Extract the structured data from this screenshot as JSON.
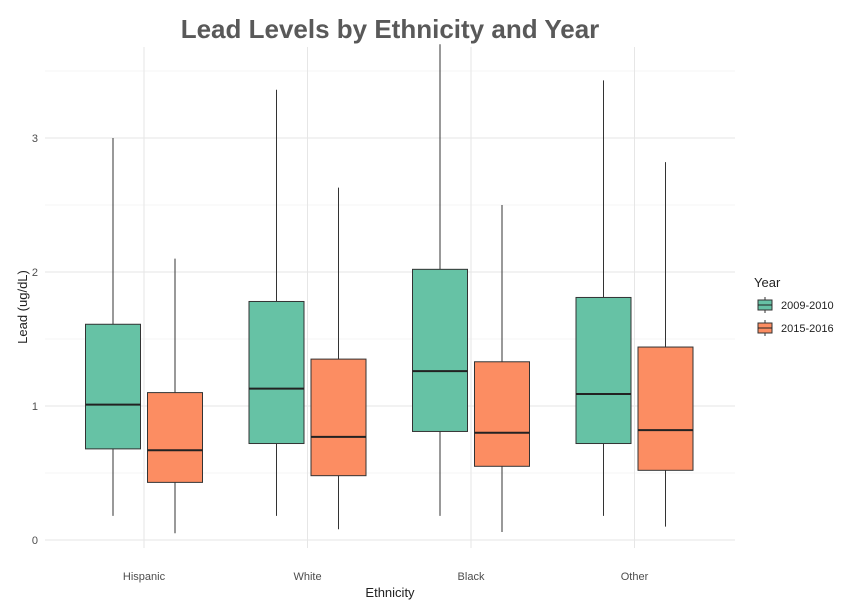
{
  "chart_data": {
    "type": "box",
    "title": "Lead Levels by Ethnicity and Year",
    "xlabel": "Ethnicity",
    "ylabel": "Lead (ug/dL)",
    "ylim": [
      0,
      3.7
    ],
    "yticks": [
      0,
      1,
      2,
      3
    ],
    "grid": true,
    "legend_position": "right",
    "legend_title": "Year",
    "categories": [
      "Hispanic",
      "White",
      "Black",
      "Other"
    ],
    "series": [
      {
        "name": "2009-2010",
        "color": "#66c2a5",
        "boxes": [
          {
            "min": 0.18,
            "q1": 0.68,
            "median": 1.01,
            "q3": 1.61,
            "max": 3.0
          },
          {
            "min": 0.18,
            "q1": 0.72,
            "median": 1.13,
            "q3": 1.78,
            "max": 3.36
          },
          {
            "min": 0.18,
            "q1": 0.81,
            "median": 1.26,
            "q3": 2.02,
            "max": 3.7
          },
          {
            "min": 0.18,
            "q1": 0.72,
            "median": 1.09,
            "q3": 1.81,
            "max": 3.43
          }
        ]
      },
      {
        "name": "2015-2016",
        "color": "#fc8d62",
        "boxes": [
          {
            "min": 0.05,
            "q1": 0.43,
            "median": 0.67,
            "q3": 1.1,
            "max": 2.1
          },
          {
            "min": 0.08,
            "q1": 0.48,
            "median": 0.77,
            "q3": 1.35,
            "max": 2.63
          },
          {
            "min": 0.06,
            "q1": 0.55,
            "median": 0.8,
            "q3": 1.33,
            "max": 2.5
          },
          {
            "min": 0.1,
            "q1": 0.52,
            "median": 0.82,
            "q3": 1.44,
            "max": 2.82
          }
        ]
      }
    ]
  }
}
